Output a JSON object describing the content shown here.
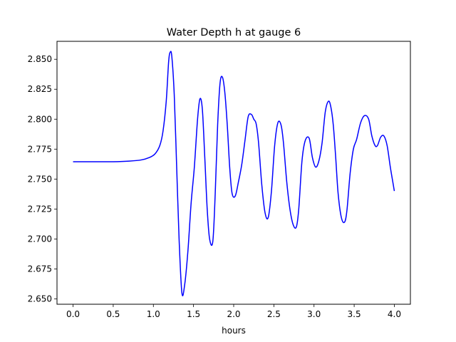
{
  "chart_data": {
    "type": "line",
    "title": "Water Depth h at gauge 6",
    "xlabel": "hours",
    "ylabel": "",
    "xlim": [
      -0.2,
      4.2
    ],
    "ylim": [
      2.6455,
      2.865
    ],
    "xticks": [
      0.0,
      0.5,
      1.0,
      1.5,
      2.0,
      2.5,
      3.0,
      3.5,
      4.0
    ],
    "xtick_labels": [
      "0.0",
      "0.5",
      "1.0",
      "1.5",
      "2.0",
      "2.5",
      "3.0",
      "3.5",
      "4.0"
    ],
    "yticks": [
      2.65,
      2.675,
      2.7,
      2.725,
      2.75,
      2.775,
      2.8,
      2.825,
      2.85
    ],
    "ytick_labels": [
      "2.650",
      "2.675",
      "2.700",
      "2.725",
      "2.750",
      "2.775",
      "2.800",
      "2.825",
      "2.850"
    ],
    "grid": false,
    "series": [
      {
        "color": "#0000ff",
        "x": [
          0.0,
          0.3,
          0.5,
          0.7,
          0.85,
          0.95,
          1.02,
          1.08,
          1.12,
          1.16,
          1.19,
          1.21,
          1.23,
          1.26,
          1.29,
          1.32,
          1.355,
          1.39,
          1.43,
          1.47,
          1.51,
          1.55,
          1.58,
          1.61,
          1.64,
          1.67,
          1.7,
          1.74,
          1.77,
          1.8,
          1.83,
          1.86,
          1.89,
          1.92,
          1.95,
          1.98,
          2.02,
          2.06,
          2.1,
          2.14,
          2.18,
          2.22,
          2.25,
          2.28,
          2.31,
          2.35,
          2.39,
          2.43,
          2.47,
          2.51,
          2.55,
          2.59,
          2.62,
          2.66,
          2.7,
          2.74,
          2.78,
          2.81,
          2.85,
          2.89,
          2.94,
          2.98,
          3.02,
          3.06,
          3.1,
          3.14,
          3.18,
          3.21,
          3.24,
          3.27,
          3.3,
          3.34,
          3.38,
          3.41,
          3.45,
          3.49,
          3.53,
          3.58,
          3.63,
          3.68,
          3.72,
          3.76,
          3.79,
          3.83,
          3.87,
          3.91,
          3.95,
          3.98,
          4.0
        ],
        "y": [
          2.7645,
          2.7645,
          2.7645,
          2.765,
          2.766,
          2.768,
          2.771,
          2.778,
          2.79,
          2.815,
          2.848,
          2.856,
          2.852,
          2.82,
          2.76,
          2.7,
          2.655,
          2.662,
          2.69,
          2.73,
          2.76,
          2.8,
          2.817,
          2.808,
          2.768,
          2.725,
          2.7,
          2.698,
          2.738,
          2.795,
          2.83,
          2.835,
          2.822,
          2.795,
          2.76,
          2.738,
          2.736,
          2.748,
          2.762,
          2.782,
          2.802,
          2.804,
          2.8,
          2.796,
          2.78,
          2.745,
          2.722,
          2.718,
          2.74,
          2.778,
          2.797,
          2.795,
          2.78,
          2.748,
          2.725,
          2.712,
          2.71,
          2.725,
          2.765,
          2.782,
          2.784,
          2.768,
          2.76,
          2.765,
          2.78,
          2.806,
          2.815,
          2.81,
          2.795,
          2.768,
          2.738,
          2.718,
          2.714,
          2.724,
          2.755,
          2.775,
          2.783,
          2.797,
          2.803,
          2.8,
          2.786,
          2.778,
          2.778,
          2.785,
          2.786,
          2.778,
          2.76,
          2.748,
          2.74
        ]
      }
    ]
  }
}
